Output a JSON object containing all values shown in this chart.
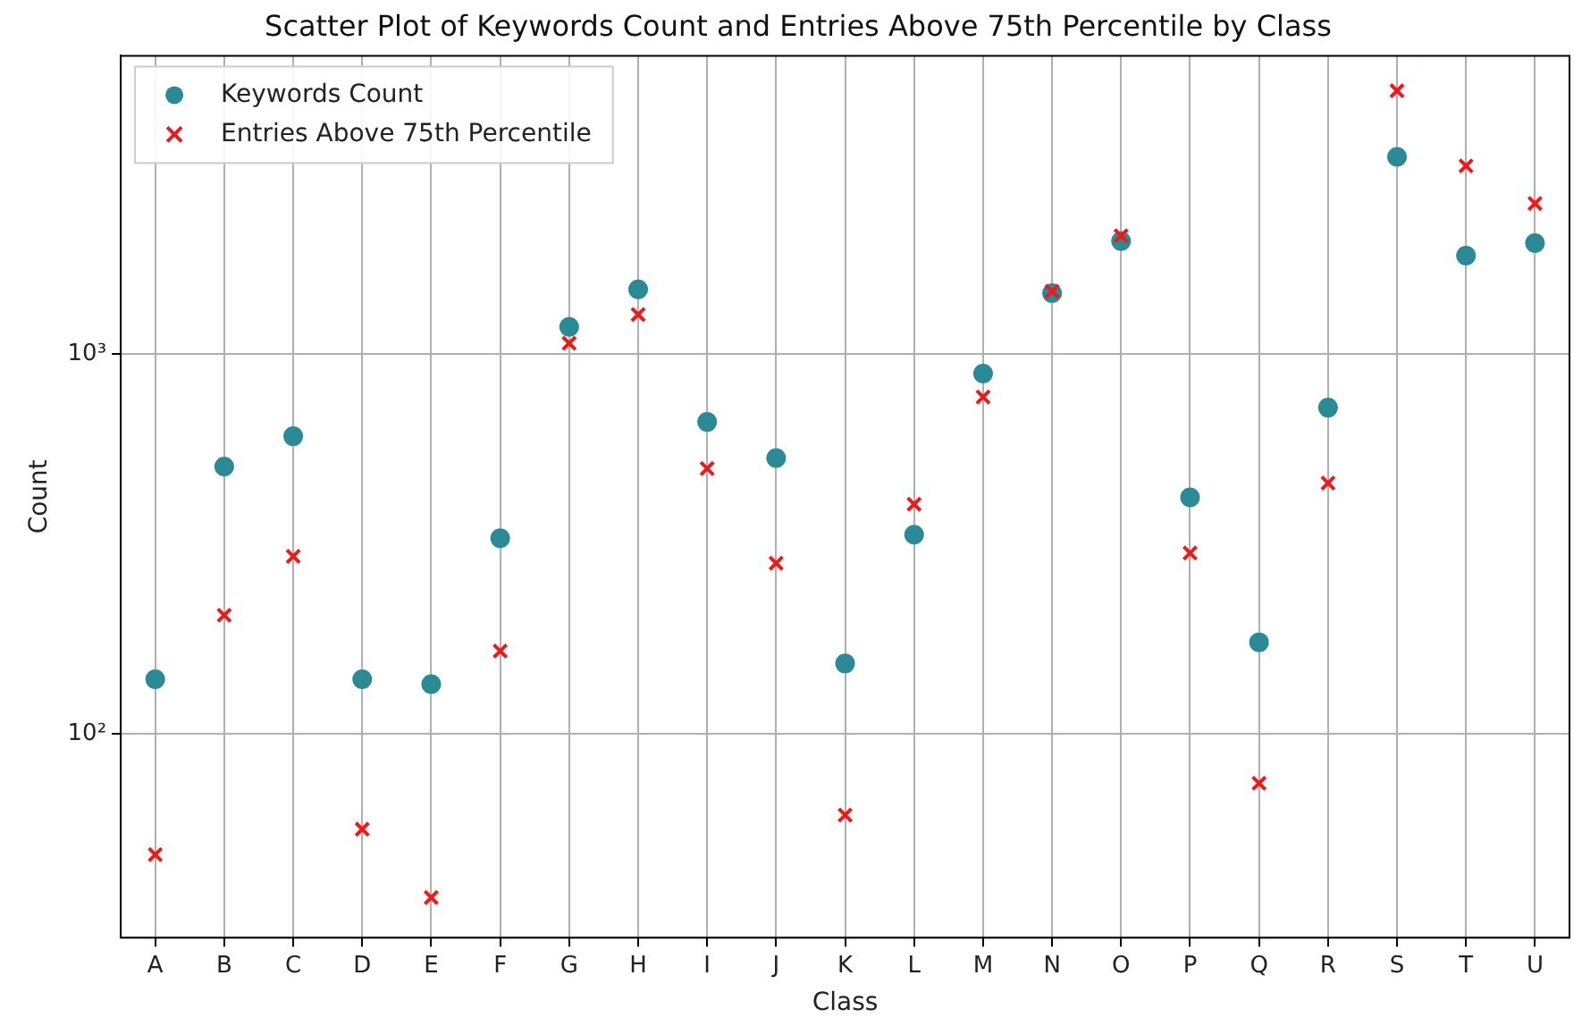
{
  "chart_data": {
    "type": "scatter",
    "title": "Scatter Plot of Keywords Count and Entries Above 75th Percentile by Class",
    "xlabel": "Class",
    "ylabel": "Count",
    "categories": [
      "A",
      "B",
      "C",
      "D",
      "E",
      "F",
      "G",
      "H",
      "I",
      "J",
      "K",
      "L",
      "M",
      "N",
      "O",
      "P",
      "Q",
      "R",
      "S",
      "T",
      "U"
    ],
    "series": [
      {
        "name": "Keywords Count",
        "color": "#2a8a96",
        "marker": "circle",
        "values": [
          139,
          505,
          607,
          139,
          135,
          327,
          1178,
          1479,
          662,
          532,
          153,
          334,
          888,
          1446,
          1982,
          419,
          174,
          722,
          3304,
          1816,
          1958
        ]
      },
      {
        "name": "Entries Above 75th Percentile",
        "color": "#f01818",
        "marker": "cross",
        "values": [
          48,
          205,
          293,
          56,
          37,
          165,
          1067,
          1270,
          499,
          281,
          61,
          402,
          770,
          1462,
          2047,
          299,
          74,
          457,
          4934,
          3128,
          2490
        ]
      }
    ],
    "log": "y",
    "ylim": [
      29,
      6100
    ],
    "yticks": [
      {
        "value": 100,
        "label": "10²"
      },
      {
        "value": 1000,
        "label": "10³"
      }
    ],
    "grid": true,
    "legend": "top left"
  }
}
